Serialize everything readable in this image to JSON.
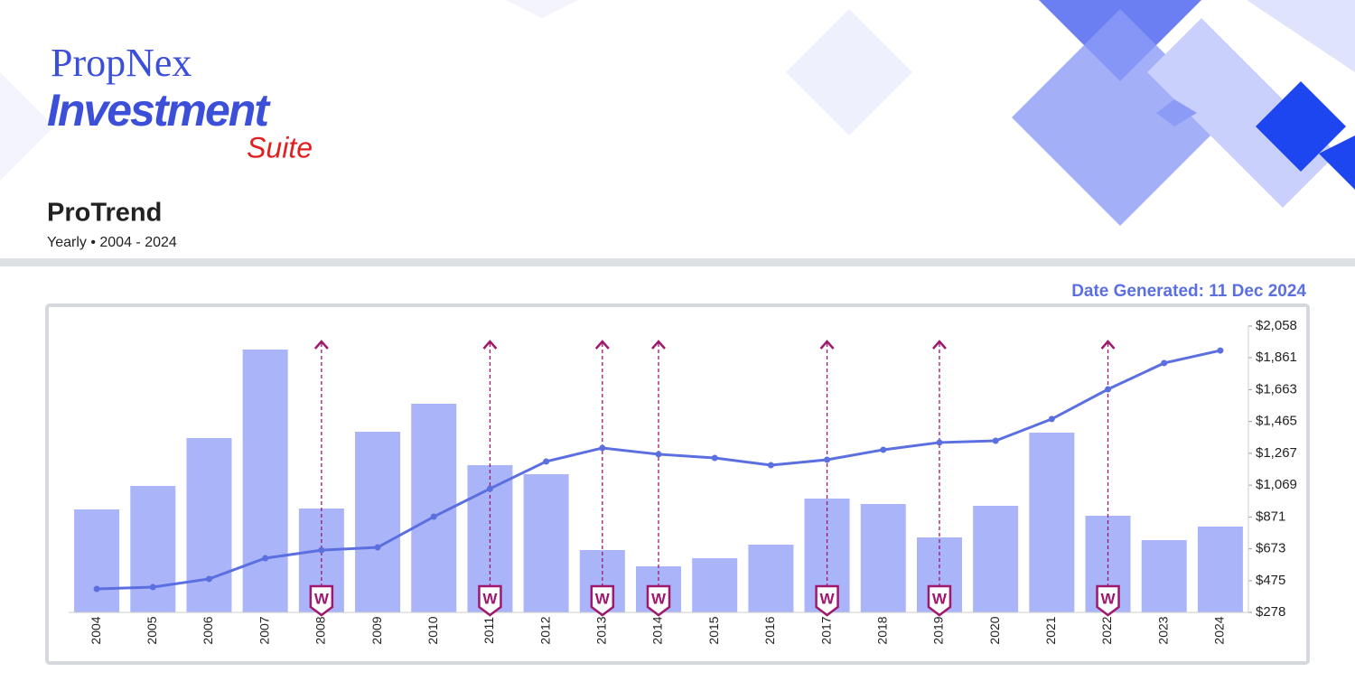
{
  "header": {
    "brand": "PropNex",
    "product": "Investment",
    "product_sub": "Suite",
    "title": "ProTrend",
    "subtitle": "Yearly • 2004 - 2024",
    "date_generated": "Date Generated: 11 Dec 2024"
  },
  "chart_data": {
    "type": "bar-line",
    "categories": [
      "2004",
      "2005",
      "2006",
      "2007",
      "2008",
      "2009",
      "2010",
      "2011",
      "2012",
      "2013",
      "2014",
      "2015",
      "2016",
      "2017",
      "2018",
      "2019",
      "2020",
      "2021",
      "2022",
      "2023",
      "2024"
    ],
    "series": [
      {
        "type": "bar",
        "color": "#aab4f8",
        "axis": "y2",
        "values": [
          114,
          140,
          193,
          291,
          115,
          200,
          231,
          163,
          153,
          69,
          51,
          60,
          75,
          126,
          120,
          83,
          118,
          199,
          107,
          80,
          95
        ]
      },
      {
        "type": "line",
        "color": "#5b6fe0",
        "values": [
          424,
          435,
          486,
          615,
          665,
          682,
          873,
          1047,
          1216,
          1300,
          1261,
          1238,
          1193,
          1227,
          1289,
          1334,
          1345,
          1480,
          1665,
          1828,
          1906
        ]
      }
    ],
    "ylim": [
      278,
      2058
    ],
    "yticks": [
      {
        "value": 278,
        "label": "$278"
      },
      {
        "value": 475,
        "label": "$475"
      },
      {
        "value": 673,
        "label": "$673"
      },
      {
        "value": 871,
        "label": "$871"
      },
      {
        "value": 1069,
        "label": "$1,069"
      },
      {
        "value": 1267,
        "label": "$1,267"
      },
      {
        "value": 1465,
        "label": "$1,465"
      },
      {
        "value": 1663,
        "label": "$1,663"
      },
      {
        "value": 1861,
        "label": "$1,861"
      },
      {
        "value": 2058,
        "label": "$2,058"
      }
    ],
    "y2lim": [
      0,
      333
    ],
    "marker_label": "W",
    "marker_categories": [
      "2008",
      "2011",
      "2013",
      "2014",
      "2017",
      "2019",
      "2022"
    ],
    "marker_color": "#a0186e"
  }
}
